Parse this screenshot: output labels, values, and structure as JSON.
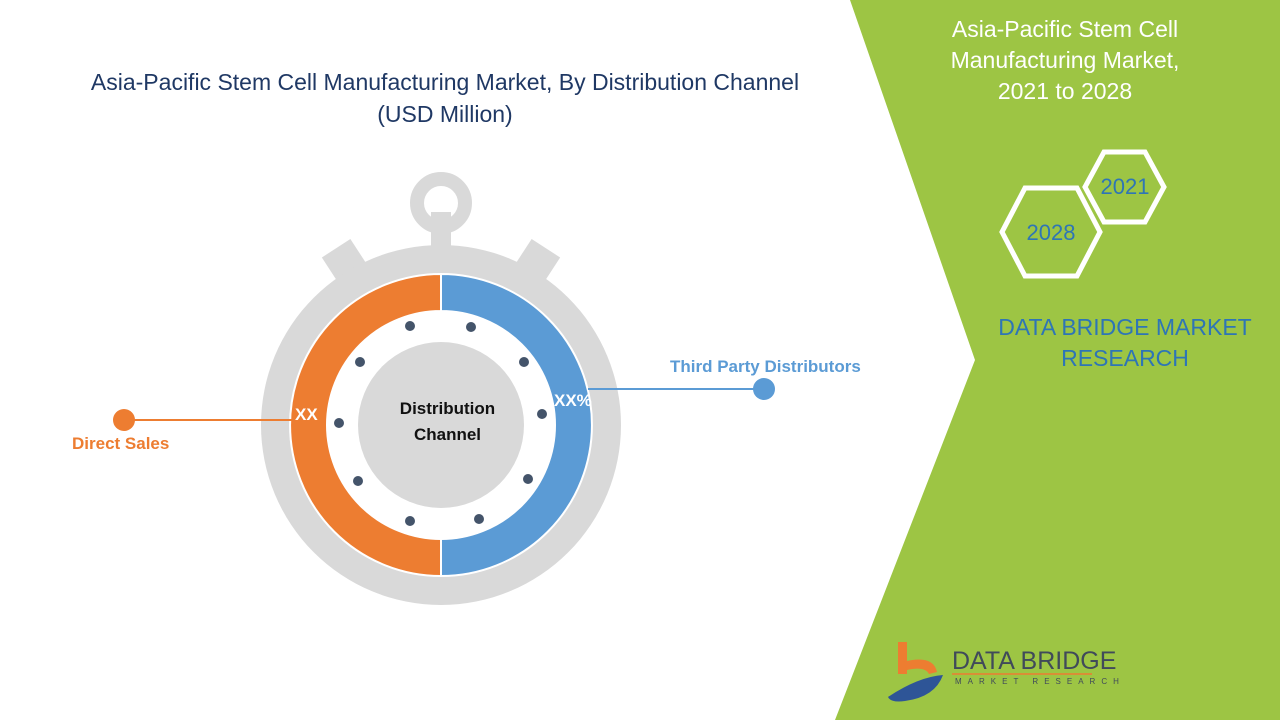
{
  "title": {
    "line1": "Asia-Pacific Stem Cell Manufacturing Market, By Distribution Channel",
    "line2": "(USD Million)"
  },
  "side_panel": {
    "title_line1": "Asia-Pacific Stem Cell",
    "title_line2": "Manufacturing Market,",
    "title_line3": "2021 to 2028",
    "hex_years": [
      "2021",
      "2028"
    ],
    "brand_line1": "DATA BRIDGE MARKET",
    "brand_line2": "RESEARCH",
    "logo_title": "DATA BRIDGE",
    "logo_subtitle": "MARKET RESEARCH"
  },
  "colors": {
    "direct_sales": "#ed7d31",
    "third_party": "#5b9bd5",
    "panel_green": "#9dc544",
    "gauge_gray": "#d9d9d9",
    "dots": "#44546a"
  },
  "chart_data": {
    "type": "pie",
    "variant": "donut",
    "center_label_line1": "Distribution",
    "center_label_line2": "Channel",
    "categories": [
      "Direct Sales",
      "Third Party Distributors"
    ],
    "shares": [
      50,
      50
    ],
    "data_labels": [
      "XX",
      "XX%"
    ]
  }
}
